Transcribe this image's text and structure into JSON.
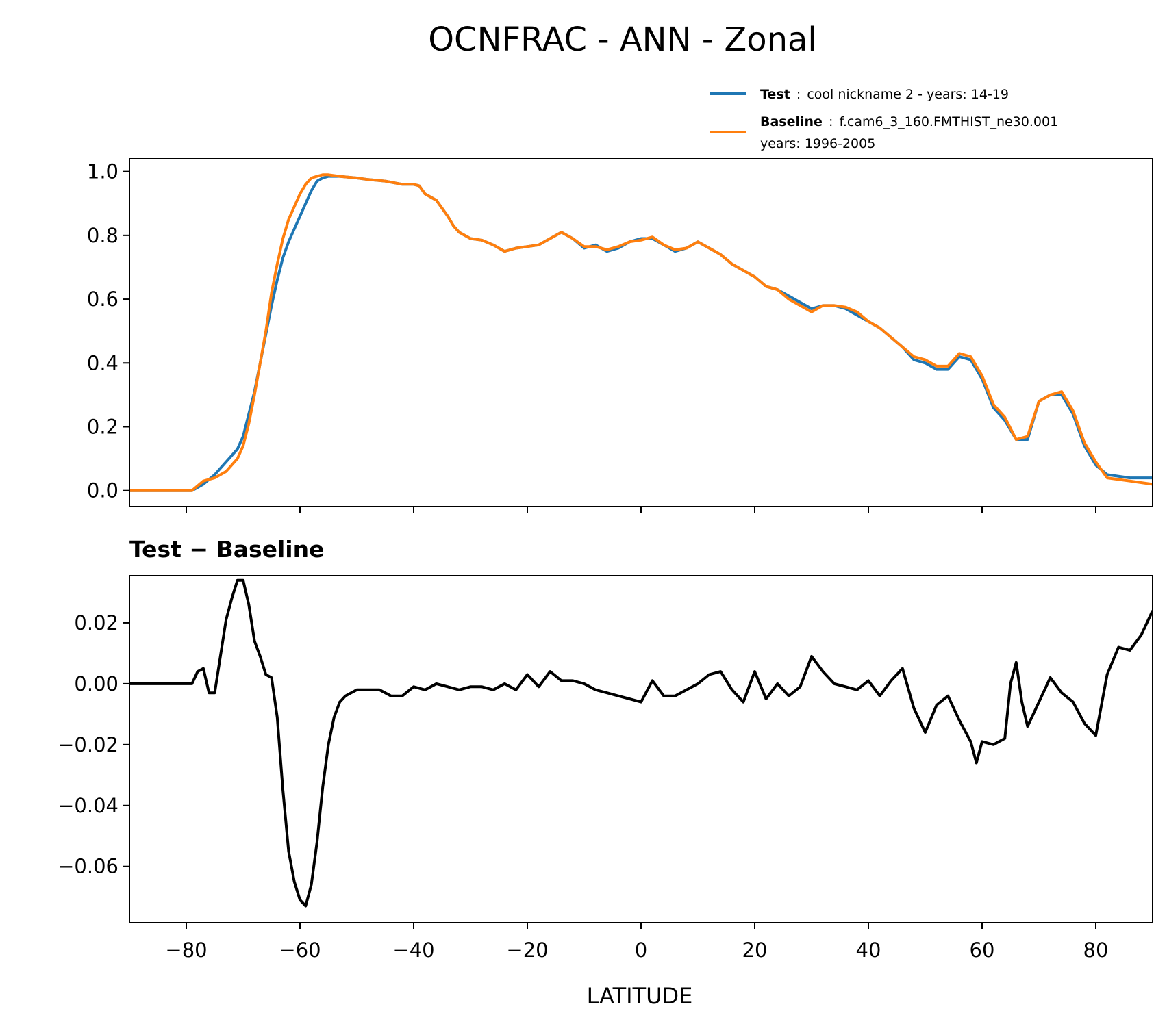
{
  "figure": {
    "title": "OCNFRAC - ANN - Zonal",
    "xlabel": "LATITUDE"
  },
  "legend": {
    "test": {
      "name": "Test",
      "sep": ":",
      "desc": "cool nickname 2 - years: 14-19"
    },
    "baseline": {
      "name": "Baseline",
      "sep": ":",
      "desc": "f.cam6_3_160.FMTHIST_ne30.001",
      "desc2": "years: 1996-2005"
    }
  },
  "colors": {
    "test": "#1f77b4",
    "baseline": "#ff7f0e",
    "diff": "#000000"
  },
  "chart_data": [
    {
      "type": "line",
      "title": "",
      "xlabel": "LATITUDE",
      "ylabel": "",
      "xlim": [
        -90,
        90
      ],
      "ylim": [
        -0.05,
        1.04
      ],
      "xticks": [
        -80,
        -60,
        -40,
        -20,
        0,
        20,
        40,
        60,
        80
      ],
      "yticks": [
        0.0,
        0.2,
        0.4,
        0.6,
        0.8,
        1.0
      ],
      "ytick_labels": [
        "0.0",
        "0.2",
        "0.4",
        "0.6",
        "0.8",
        "1.0"
      ],
      "x": [
        -90,
        -79,
        -77,
        -75,
        -73,
        -71,
        -70,
        -69,
        -68,
        -67,
        -66,
        -65,
        -64,
        -63,
        -62,
        -61,
        -60,
        -59,
        -58,
        -57,
        -56,
        -55,
        -53,
        -50,
        -48,
        -45,
        -42,
        -40,
        -39,
        -38,
        -36,
        -34,
        -33,
        -32,
        -30,
        -28,
        -26,
        -24,
        -22,
        -20,
        -18,
        -16,
        -14,
        -12,
        -10,
        -8,
        -6,
        -4,
        -2,
        0,
        2,
        4,
        6,
        8,
        10,
        12,
        14,
        16,
        18,
        20,
        22,
        24,
        26,
        28,
        30,
        32,
        34,
        36,
        38,
        40,
        42,
        44,
        46,
        48,
        50,
        52,
        54,
        56,
        58,
        60,
        62,
        64,
        66,
        68,
        70,
        72,
        74,
        76,
        78,
        80,
        82,
        86,
        90
      ],
      "series": [
        {
          "name": "Test",
          "color": "#1f77b4",
          "values": [
            0.0,
            0.0,
            0.02,
            0.05,
            0.09,
            0.13,
            0.17,
            0.24,
            0.31,
            0.4,
            0.49,
            0.58,
            0.66,
            0.73,
            0.78,
            0.82,
            0.86,
            0.9,
            0.94,
            0.97,
            0.98,
            0.985,
            0.985,
            0.98,
            0.975,
            0.97,
            0.96,
            0.96,
            0.955,
            0.93,
            0.91,
            0.86,
            0.83,
            0.81,
            0.79,
            0.785,
            0.77,
            0.75,
            0.76,
            0.765,
            0.77,
            0.79,
            0.81,
            0.79,
            0.76,
            0.77,
            0.75,
            0.76,
            0.78,
            0.79,
            0.79,
            0.77,
            0.75,
            0.76,
            0.78,
            0.76,
            0.74,
            0.71,
            0.69,
            0.67,
            0.64,
            0.63,
            0.61,
            0.59,
            0.57,
            0.58,
            0.58,
            0.57,
            0.55,
            0.53,
            0.51,
            0.48,
            0.45,
            0.41,
            0.4,
            0.38,
            0.38,
            0.42,
            0.41,
            0.35,
            0.26,
            0.22,
            0.16,
            0.16,
            0.28,
            0.3,
            0.3,
            0.24,
            0.14,
            0.08,
            0.05,
            0.04,
            0.04
          ]
        },
        {
          "name": "Baseline",
          "color": "#ff7f0e",
          "values": [
            0.0,
            0.0,
            0.03,
            0.04,
            0.06,
            0.1,
            0.14,
            0.21,
            0.3,
            0.4,
            0.5,
            0.62,
            0.71,
            0.79,
            0.85,
            0.89,
            0.93,
            0.96,
            0.98,
            0.985,
            0.99,
            0.99,
            0.985,
            0.98,
            0.975,
            0.97,
            0.96,
            0.96,
            0.955,
            0.93,
            0.91,
            0.86,
            0.83,
            0.81,
            0.79,
            0.785,
            0.77,
            0.75,
            0.76,
            0.765,
            0.77,
            0.79,
            0.81,
            0.79,
            0.765,
            0.765,
            0.755,
            0.765,
            0.78,
            0.785,
            0.795,
            0.77,
            0.755,
            0.76,
            0.78,
            0.76,
            0.74,
            0.71,
            0.69,
            0.67,
            0.64,
            0.63,
            0.6,
            0.58,
            0.56,
            0.58,
            0.58,
            0.575,
            0.56,
            0.53,
            0.51,
            0.48,
            0.45,
            0.42,
            0.41,
            0.39,
            0.39,
            0.43,
            0.42,
            0.36,
            0.27,
            0.23,
            0.16,
            0.17,
            0.28,
            0.3,
            0.31,
            0.25,
            0.15,
            0.09,
            0.04,
            0.03,
            0.02
          ]
        }
      ]
    },
    {
      "type": "line",
      "title": "Test − Baseline",
      "xlabel": "LATITUDE",
      "ylabel": "",
      "xlim": [
        -90,
        90
      ],
      "ylim": [
        -0.0785,
        0.0355
      ],
      "xticks": [
        -80,
        -60,
        -40,
        -20,
        0,
        20,
        40,
        60,
        80
      ],
      "xtick_labels": [
        "−80",
        "−60",
        "−40",
        "−20",
        "0",
        "20",
        "40",
        "60",
        "80"
      ],
      "yticks": [
        -0.06,
        -0.04,
        -0.02,
        0.0,
        0.02
      ],
      "ytick_labels": [
        "−0.06",
        "−0.04",
        "−0.02",
        "0.00",
        "0.02"
      ],
      "x": [
        -90,
        -79,
        -78,
        -77,
        -76,
        -75,
        -74,
        -73,
        -72,
        -71,
        -70,
        -69,
        -68,
        -67,
        -66,
        -65,
        -64,
        -63,
        -62,
        -61,
        -60,
        -59,
        -58,
        -57,
        -56,
        -55,
        -54,
        -53,
        -52,
        -51,
        -50,
        -48,
        -46,
        -44,
        -42,
        -40,
        -38,
        -36,
        -34,
        -32,
        -30,
        -28,
        -26,
        -24,
        -22,
        -20,
        -18,
        -16,
        -14,
        -12,
        -10,
        -8,
        -6,
        -4,
        -2,
        0,
        2,
        4,
        6,
        8,
        10,
        12,
        14,
        16,
        18,
        20,
        22,
        24,
        26,
        28,
        30,
        32,
        34,
        36,
        38,
        40,
        42,
        44,
        46,
        48,
        50,
        52,
        54,
        56,
        58,
        59,
        60,
        62,
        64,
        65,
        66,
        67,
        68,
        70,
        72,
        74,
        76,
        78,
        80,
        82,
        84,
        86,
        88,
        90
      ],
      "series": [
        {
          "name": "Test − Baseline",
          "color": "#000000",
          "values": [
            0.0,
            0.0,
            0.004,
            0.005,
            -0.003,
            -0.003,
            0.009,
            0.021,
            0.028,
            0.034,
            0.034,
            0.026,
            0.014,
            0.009,
            0.003,
            0.002,
            -0.011,
            -0.035,
            -0.055,
            -0.065,
            -0.071,
            -0.073,
            -0.066,
            -0.052,
            -0.034,
            -0.02,
            -0.011,
            -0.006,
            -0.004,
            -0.003,
            -0.002,
            -0.002,
            -0.002,
            -0.004,
            -0.004,
            -0.001,
            -0.002,
            0.0,
            -0.001,
            -0.002,
            -0.001,
            -0.001,
            -0.002,
            0.0,
            -0.002,
            0.003,
            -0.001,
            0.004,
            0.001,
            0.001,
            0.0,
            -0.002,
            -0.003,
            -0.004,
            -0.005,
            -0.006,
            0.001,
            -0.004,
            -0.004,
            -0.002,
            0.0,
            0.003,
            0.004,
            -0.002,
            -0.006,
            0.004,
            -0.005,
            0.0,
            -0.004,
            -0.001,
            0.009,
            0.004,
            0.0,
            -0.001,
            -0.002,
            0.001,
            -0.004,
            0.001,
            0.005,
            -0.008,
            -0.016,
            -0.007,
            -0.004,
            -0.012,
            -0.019,
            -0.026,
            -0.019,
            -0.02,
            -0.018,
            0.0,
            0.007,
            -0.006,
            -0.014,
            -0.006,
            0.002,
            -0.003,
            -0.006,
            -0.013,
            -0.017,
            0.003,
            0.012,
            0.011,
            0.016,
            0.024
          ]
        }
      ]
    }
  ]
}
